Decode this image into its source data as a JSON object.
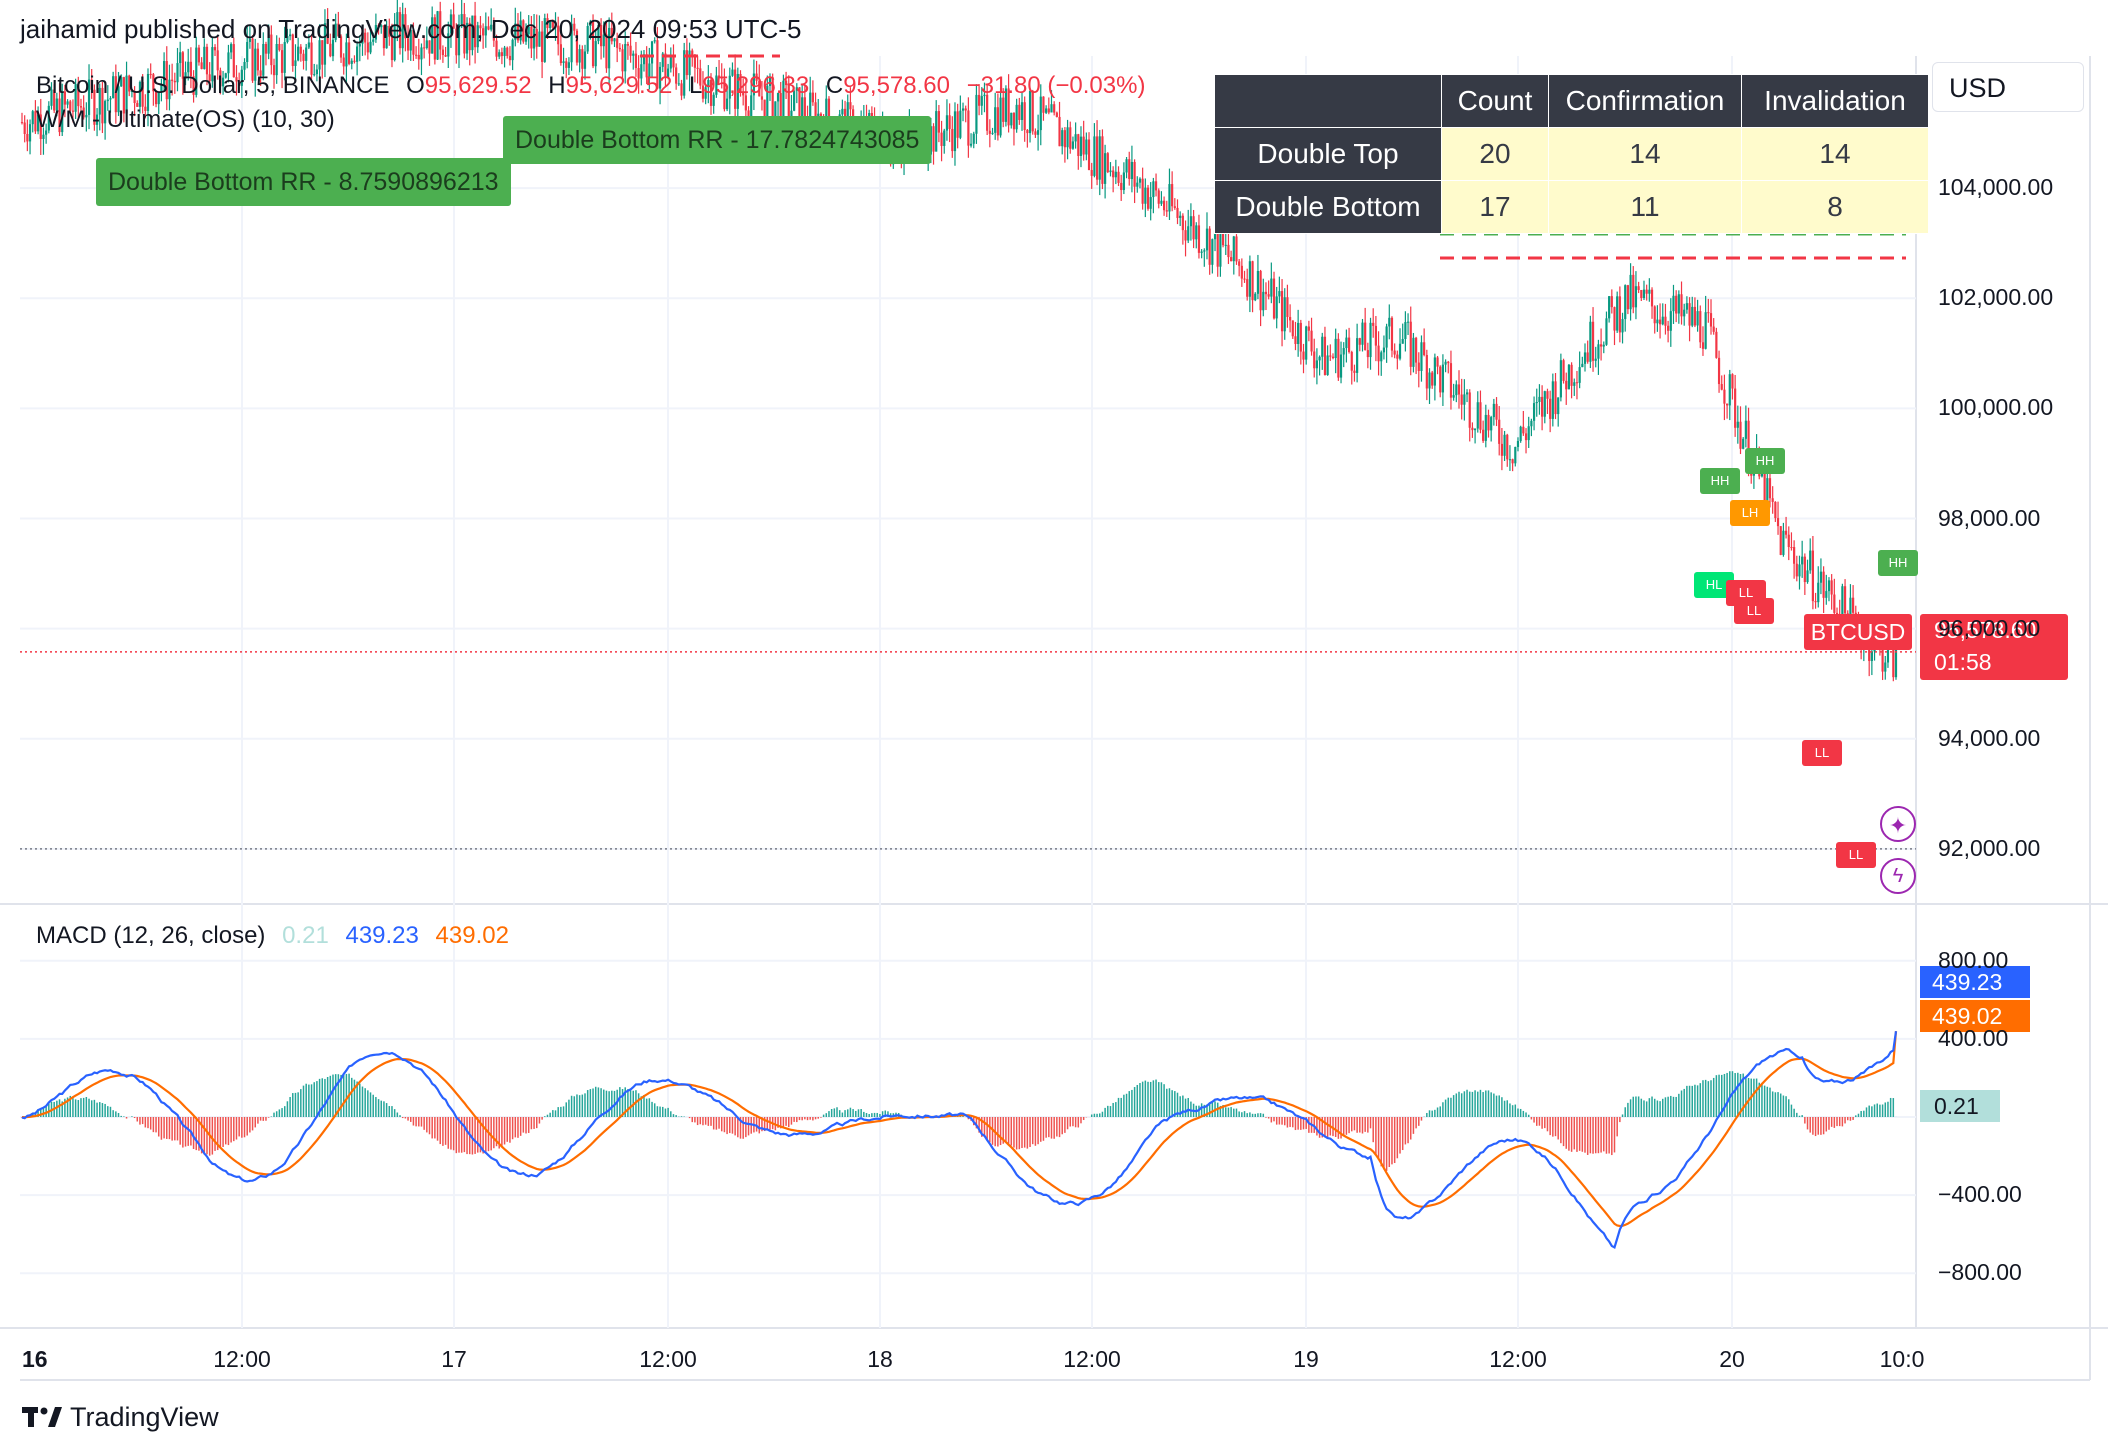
{
  "header": "jaihamid published on TradingView.com, Dec 20, 2024 09:53 UTC-5",
  "legend": {
    "symbol": "Bitcoin / U.S. Dollar, 5, BINANCE",
    "o_key": "O",
    "o": "95,629.52",
    "h_key": "H",
    "h": "95,629.52",
    "l_key": "L",
    "l": "95,296.33",
    "c_key": "C",
    "c": "95,578.60",
    "change": "−31.80 (−0.03%)",
    "indicator": "W/M - Ultimate(OS) (10, 30)"
  },
  "currency": "USD",
  "stats_table": {
    "headers": [
      "",
      "Count",
      "Confirmation",
      "Invalidation"
    ],
    "rows": [
      {
        "label": "Double Top",
        "count": "20",
        "confirmation": "14",
        "invalidation": "14"
      },
      {
        "label": "Double Bottom",
        "count": "17",
        "confirmation": "11",
        "invalidation": "8"
      }
    ]
  },
  "rr_labels": [
    "Double Bottom RR - 8.7590896213",
    "Double Bottom RR - 17.7824743085"
  ],
  "price_tag": {
    "symbol": "BTCUSD",
    "price": "95,578.60",
    "countdown": "01:58"
  },
  "pivots": [
    "HH",
    "HH",
    "LH",
    "HL",
    "LL",
    "LL",
    "LL",
    "LL",
    "HH"
  ],
  "macd": {
    "title": "MACD (12, 26, close)",
    "hist": "0.21",
    "macd": "439.23",
    "signal": "439.02",
    "tag_macd": "439.23",
    "tag_signal": "439.02",
    "tag_hist": "0.21"
  },
  "colors": {
    "up": "#089981",
    "down": "#f23645",
    "macd_line": "#2962ff",
    "signal_line": "#ff6d00",
    "hist_up": "#26a69a",
    "hist_down": "#ef5350"
  },
  "footer": "TradingView",
  "chart_data": [
    {
      "type": "line",
      "title": "Bitcoin / U.S. Dollar, 5, BINANCE",
      "y_tick_labels": [
        "104,000.00",
        "102,000.00",
        "100,000.00",
        "98,000.00",
        "96,000.00",
        "94,000.00",
        "92,000.00"
      ],
      "y_ticks": [
        104000,
        102000,
        100000,
        98000,
        96000,
        94000,
        92000
      ],
      "ylim": [
        91000,
        106400
      ],
      "x_tick_labels": [
        "16",
        "12:00",
        "17",
        "12:00",
        "18",
        "12:00",
        "19",
        "12:00",
        "20",
        "10:0"
      ],
      "grid": true,
      "series": [
        {
          "name": "BTCUSD",
          "x": [
            0,
            0.5,
            1,
            1.5,
            2,
            2.3,
            2.6,
            2.9,
            3.2,
            3.4,
            3.6,
            3.9,
            4.1,
            4.2,
            4.4,
            4.6,
            4.8,
            4.9
          ],
          "values": [
            105200,
            106200,
            106800,
            106600,
            105500,
            104800,
            105500,
            104200,
            102500,
            100900,
            101300,
            99300,
            101200,
            102000,
            101500,
            97600,
            96000,
            95400
          ]
        }
      ]
    },
    {
      "type": "line",
      "title": "MACD (12, 26, close)",
      "y_tick_labels": [
        "800.00",
        "400.00",
        "0.00",
        "−400.00",
        "−800.00"
      ],
      "y_ticks": [
        800,
        400,
        0,
        -400,
        -800
      ],
      "ylim": [
        -1080,
        1080
      ],
      "series": [
        {
          "name": "MACD",
          "last": 439.23
        },
        {
          "name": "Signal",
          "last": 439.02
        },
        {
          "name": "Histogram",
          "last": 0.21
        }
      ]
    }
  ]
}
